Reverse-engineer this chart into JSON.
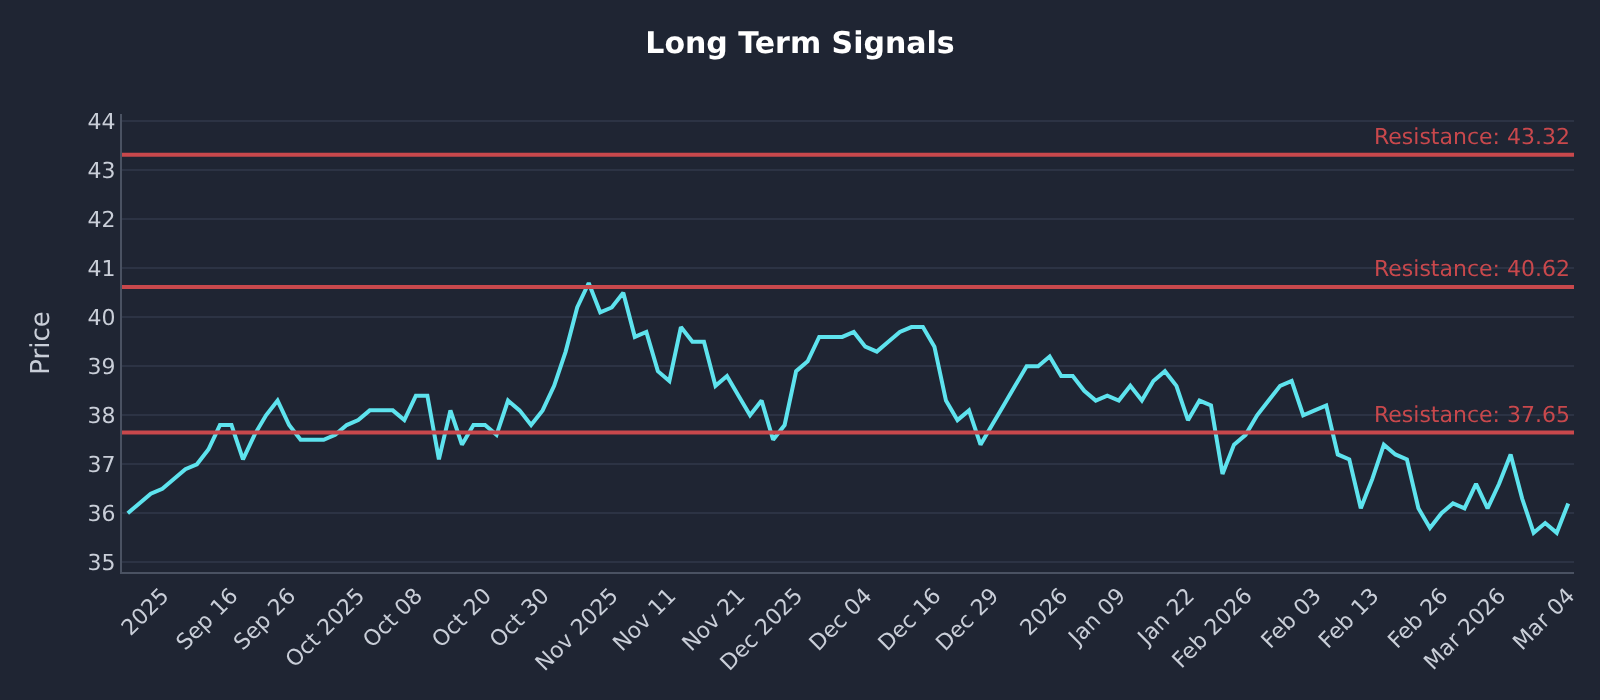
{
  "chart_data": {
    "type": "line",
    "title": "Long Term Signals",
    "ylabel": "Price",
    "categories": [
      null,
      null,
      null,
      "2025",
      null,
      null,
      null,
      null,
      null,
      "Sep 16",
      null,
      null,
      null,
      null,
      "Sep 26",
      null,
      null,
      null,
      null,
      null,
      "Oct 2025",
      null,
      null,
      null,
      null,
      "Oct 08",
      null,
      null,
      null,
      null,
      null,
      "Oct 20",
      null,
      null,
      null,
      null,
      "Oct 30",
      null,
      null,
      null,
      null,
      null,
      "Nov 2025",
      null,
      null,
      null,
      null,
      "Nov 11",
      null,
      null,
      null,
      null,
      null,
      "Nov 21",
      null,
      null,
      null,
      null,
      "Dec 2025",
      null,
      null,
      null,
      null,
      null,
      "Dec 04",
      null,
      null,
      null,
      null,
      null,
      "Dec 16",
      null,
      null,
      null,
      null,
      "Dec 29",
      null,
      null,
      null,
      null,
      null,
      "2026",
      null,
      null,
      null,
      null,
      "Jan 09",
      null,
      null,
      null,
      null,
      null,
      "Jan 22",
      null,
      null,
      null,
      null,
      "Feb 2026",
      null,
      null,
      null,
      null,
      null,
      "Feb 03",
      null,
      null,
      null,
      null,
      "Feb 13",
      null,
      null,
      null,
      null,
      null,
      "Feb 26",
      null,
      null,
      null,
      null,
      "Mar 2026",
      null,
      null,
      null,
      null,
      null,
      "Mar 04"
    ],
    "series": [
      {
        "color": "#5ee3ee",
        "values": [
          36.0,
          36.2,
          36.4,
          36.5,
          36.7,
          36.9,
          37.0,
          37.3,
          37.8,
          37.8,
          37.1,
          37.6,
          38.0,
          38.3,
          37.8,
          37.5,
          37.5,
          37.5,
          37.6,
          37.8,
          37.9,
          38.1,
          38.1,
          38.1,
          37.9,
          38.4,
          38.4,
          37.1,
          38.1,
          37.4,
          37.8,
          37.8,
          37.6,
          38.3,
          38.1,
          37.8,
          38.1,
          38.6,
          39.3,
          40.2,
          40.7,
          40.1,
          40.2,
          40.5,
          39.6,
          39.7,
          38.9,
          38.7,
          39.8,
          39.5,
          39.5,
          38.6,
          38.8,
          38.4,
          38.0,
          38.3,
          37.5,
          37.8,
          38.9,
          39.1,
          39.6,
          39.6,
          39.6,
          39.7,
          39.4,
          39.3,
          39.5,
          39.7,
          39.8,
          39.8,
          39.4,
          38.3,
          37.9,
          38.1,
          37.4,
          37.8,
          38.2,
          38.6,
          39.0,
          39.0,
          39.2,
          38.8,
          38.8,
          38.5,
          38.3,
          38.4,
          38.3,
          38.6,
          38.3,
          38.7,
          38.9,
          38.6,
          37.9,
          38.3,
          38.2,
          36.8,
          37.4,
          37.6,
          38.0,
          38.3,
          38.6,
          38.7,
          38.0,
          38.1,
          38.2,
          37.2,
          37.1,
          36.1,
          36.7,
          37.4,
          37.2,
          37.1,
          36.1,
          35.7,
          36.0,
          36.2,
          36.1,
          36.6,
          36.1,
          36.6,
          37.2,
          36.3,
          35.6,
          35.8,
          35.6,
          36.2
        ]
      }
    ],
    "ylim": [
      34.8,
      44.15
    ],
    "yticks": [
      35,
      36,
      37,
      38,
      39,
      40,
      41,
      42,
      43,
      44
    ],
    "grid": "y",
    "marker": "none",
    "line_style": "solid",
    "ref_lines": [
      {
        "axis": "y",
        "value": 43.32,
        "label": "Resistance: 43.32",
        "color": "#c8484c"
      },
      {
        "axis": "y",
        "value": 40.62,
        "label": "Resistance: 40.62",
        "color": "#c8484c"
      },
      {
        "axis": "y",
        "value": 37.65,
        "label": "Resistance: 37.65",
        "color": "#c8484c"
      }
    ]
  }
}
